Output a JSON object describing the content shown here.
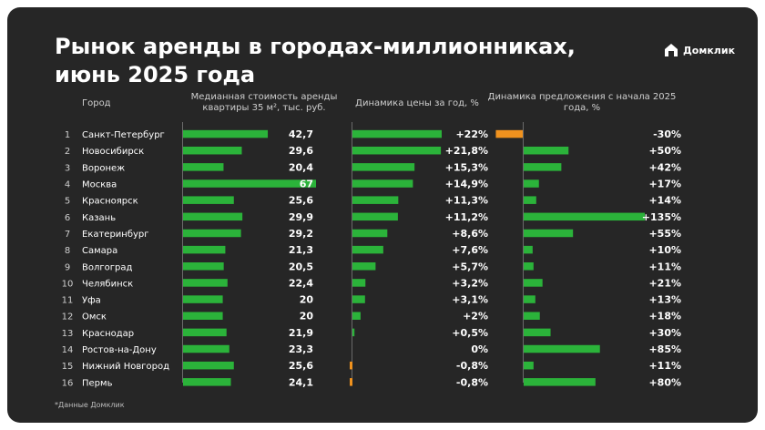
{
  "title_line1": "Рынок аренды в городах-миллионниках,",
  "title_line2": "июнь 2025 года",
  "brand": "Домклик",
  "headers": {
    "city": "Город",
    "rent": "Медианная стоимость аренды квартиры 35 м², тыс. руб.",
    "price": "Динамика цены за год, %",
    "supply": "Динамика предложения с начала 2025 года, %"
  },
  "footnote": "*Данные Домклик",
  "colors": {
    "background": "#262626",
    "bar_green": "#2bb33a",
    "bar_orange": "#f0921e",
    "text": "#ffffff"
  },
  "chart_data": {
    "type": "table",
    "title": "Рынок аренды в городах-миллионниках, июнь 2025 года",
    "columns": [
      "Город",
      "Медианная стоимость аренды квартиры 35 м², тыс. руб.",
      "Динамика цены за год, %",
      "Динамика предложения с начала 2025 года, %"
    ],
    "ranks": [
      "1",
      "2",
      "3",
      "4",
      "5",
      "6",
      "7",
      "8",
      "9",
      "10",
      "11",
      "12",
      "13",
      "14",
      "15",
      "16"
    ],
    "cities": [
      "Санкт-Петербург",
      "Новосибирск",
      "Воронеж",
      "Москва",
      "Красноярск",
      "Казань",
      "Екатеринбург",
      "Самара",
      "Волгоград",
      "Челябинск",
      "Уфа",
      "Омск",
      "Краснодар",
      "Ростов-на-Дону",
      "Нижний Новгород",
      "Пермь"
    ],
    "rent": [
      42.7,
      29.6,
      20.4,
      67,
      25.6,
      29.9,
      29.2,
      21.3,
      20.5,
      22.4,
      20,
      20,
      21.9,
      23.3,
      25.6,
      24.1
    ],
    "rent_labels": [
      "42,7",
      "29,6",
      "20,4",
      "67",
      "25,6",
      "29,9",
      "29,2",
      "21,3",
      "20,5",
      "22,4",
      "20",
      "20",
      "21,9",
      "23,3",
      "25,6",
      "24,1"
    ],
    "price_change": [
      22,
      21.8,
      15.3,
      14.9,
      11.3,
      11.2,
      8.6,
      7.6,
      5.7,
      3.2,
      3.1,
      2,
      0.5,
      0,
      -0.8,
      -0.8
    ],
    "price_labels": [
      "+22%",
      "+21,8%",
      "+15,3%",
      "+14,9%",
      "+11,3%",
      "+11,2%",
      "+8,6%",
      "+7,6%",
      "+5,7%",
      "+3,2%",
      "+3,1%",
      "+2%",
      "+0,5%",
      "0%",
      "-0,8%",
      "-0,8%"
    ],
    "supply_change": [
      -30,
      50,
      42,
      17,
      14,
      135,
      55,
      10,
      11,
      21,
      13,
      18,
      30,
      85,
      11,
      80
    ],
    "supply_labels": [
      "-30%",
      "+50%",
      "+42%",
      "+17%",
      "+14%",
      "+135%",
      "+55%",
      "+10%",
      "+11%",
      "+21%",
      "+13%",
      "+18%",
      "+30%",
      "+85%",
      "+11%",
      "+80%"
    ]
  }
}
